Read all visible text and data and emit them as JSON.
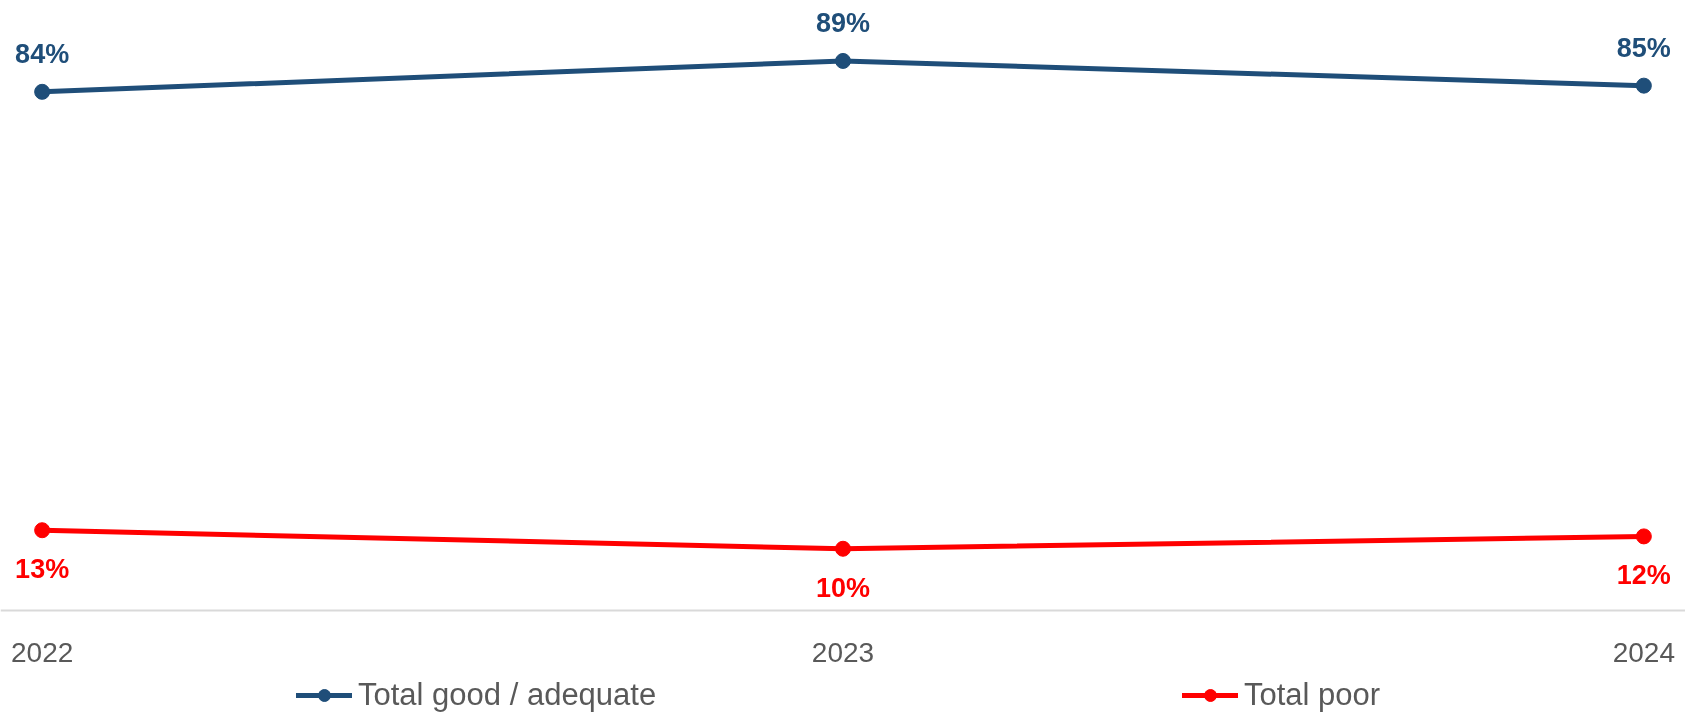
{
  "chart_data": {
    "type": "line",
    "categories": [
      "2022",
      "2023",
      "2024"
    ],
    "tick_labels": "x",
    "marker": "circle",
    "line_style": "solid",
    "legend": "bottom",
    "series": [
      {
        "name": "Total good / adequate",
        "color": "#1f4e79",
        "values": [
          84,
          89,
          85
        ],
        "value_labels": [
          "84%",
          "89%",
          "85%"
        ]
      },
      {
        "name": "Total poor",
        "color": "#ff0000",
        "values": [
          13,
          10,
          12
        ],
        "value_labels": [
          "13%",
          "10%",
          "12%"
        ]
      }
    ]
  }
}
